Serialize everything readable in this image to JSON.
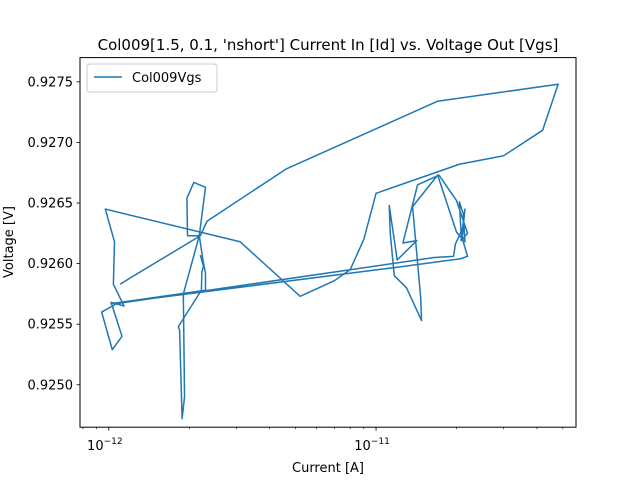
{
  "chart_data": {
    "type": "line",
    "title": "Col009[1.5, 0.1, 'nshort'] Current In [Id] vs. Voltage Out [Vgs]",
    "xlabel": "Current [A]",
    "ylabel": "Voltage [V]",
    "xscale": "log",
    "xlim": [
      7.8e-13,
      5.6e-11
    ],
    "ylim": [
      0.92465,
      0.9277
    ],
    "grid": false,
    "legend": {
      "placement": "top-left",
      "entries": [
        "Col009Vgs"
      ]
    },
    "x_ticks": [
      {
        "value": 1e-12,
        "mantissa": "10",
        "exponent": "−12"
      },
      {
        "value": 1e-11,
        "mantissa": "10",
        "exponent": "−11"
      }
    ],
    "y_ticks": [
      {
        "value": 0.925,
        "label": "0.9250"
      },
      {
        "value": 0.9255,
        "label": "0.9255"
      },
      {
        "value": 0.926,
        "label": "0.9260"
      },
      {
        "value": 0.9265,
        "label": "0.9265"
      },
      {
        "value": 0.927,
        "label": "0.9270"
      },
      {
        "value": 0.9275,
        "label": "0.9275"
      }
    ],
    "series": [
      {
        "name": "Col009Vgs",
        "color": "#1f77b4",
        "points": [
          [
            1.1e-12,
            0.92583
          ],
          [
            2.2e-12,
            0.92623
          ],
          [
            2.33e-12,
            0.92635
          ],
          [
            4.6e-12,
            0.92678
          ],
          [
            1.7e-11,
            0.92734
          ],
          [
            4.8e-11,
            0.92748
          ],
          [
            4.2e-11,
            0.9271
          ],
          [
            3e-11,
            0.92689
          ],
          [
            2.05e-11,
            0.92682
          ],
          [
            1e-11,
            0.92658
          ],
          [
            9e-12,
            0.9262
          ],
          [
            8e-12,
            0.92595
          ],
          [
            7e-12,
            0.92586
          ],
          [
            5.2e-12,
            0.92573
          ],
          [
            3.1e-12,
            0.92618
          ],
          [
            9.7e-13,
            0.92645
          ],
          [
            1.05e-12,
            0.92618
          ],
          [
            1.04e-12,
            0.92583
          ],
          [
            1.14e-12,
            0.92565
          ],
          [
            1.02e-12,
            0.92568
          ],
          [
            1.12e-12,
            0.9254
          ],
          [
            1.03e-12,
            0.92529
          ],
          [
            9.4e-13,
            0.9256
          ],
          [
            1.07e-12,
            0.92567
          ],
          [
            1.65e-11,
            0.92605
          ],
          [
            1.95e-11,
            0.92606
          ],
          [
            1.98e-11,
            0.92616
          ],
          [
            2.08e-11,
            0.92626
          ],
          [
            2.05e-11,
            0.92651
          ],
          [
            2.12e-11,
            0.92641
          ],
          [
            2.15e-11,
            0.92618
          ],
          [
            2e-11,
            0.92626
          ],
          [
            1.7e-11,
            0.92673
          ],
          [
            1.37e-11,
            0.92647
          ],
          [
            1.47e-11,
            0.92571
          ],
          [
            1.48e-11,
            0.92553
          ],
          [
            1.3e-11,
            0.9258
          ],
          [
            1.17e-11,
            0.9259
          ],
          [
            1.13e-11,
            0.92625
          ],
          [
            1.12e-11,
            0.92648
          ],
          [
            1.2e-11,
            0.92603
          ],
          [
            1.42e-11,
            0.92619
          ],
          [
            1.26e-11,
            0.92617
          ],
          [
            1.43e-11,
            0.92665
          ],
          [
            1.72e-11,
            0.92673
          ],
          [
            2e-11,
            0.92652
          ],
          [
            2.2e-11,
            0.92625
          ],
          [
            2.08e-11,
            0.92619
          ],
          [
            2.15e-11,
            0.92645
          ],
          [
            2.1e-11,
            0.92621
          ],
          [
            2.2e-11,
            0.92606
          ],
          [
            2.07e-11,
            0.92604
          ],
          [
            1.2e-11,
            0.92597
          ],
          [
            1.02e-12,
            0.92567
          ],
          [
            2.3e-12,
            0.92578
          ],
          [
            2.3e-12,
            0.92592
          ],
          [
            2.25e-12,
            0.92603
          ],
          [
            2.18e-12,
            0.92623
          ],
          [
            1.97e-12,
            0.92623
          ],
          [
            1.96e-12,
            0.92654
          ],
          [
            2.08e-12,
            0.92667
          ],
          [
            2.3e-12,
            0.92663
          ],
          [
            2.18e-12,
            0.92623
          ],
          [
            1.9e-12,
            0.92575
          ],
          [
            1.92e-12,
            0.9249
          ],
          [
            1.88e-12,
            0.92472
          ],
          [
            1.84e-12,
            0.92545
          ],
          [
            1.82e-12,
            0.92548
          ],
          [
            2.22e-12,
            0.92578
          ],
          [
            2.23e-12,
            0.92593
          ],
          [
            2.26e-12,
            0.92598
          ],
          [
            2.2e-12,
            0.92607
          ]
        ]
      }
    ]
  }
}
